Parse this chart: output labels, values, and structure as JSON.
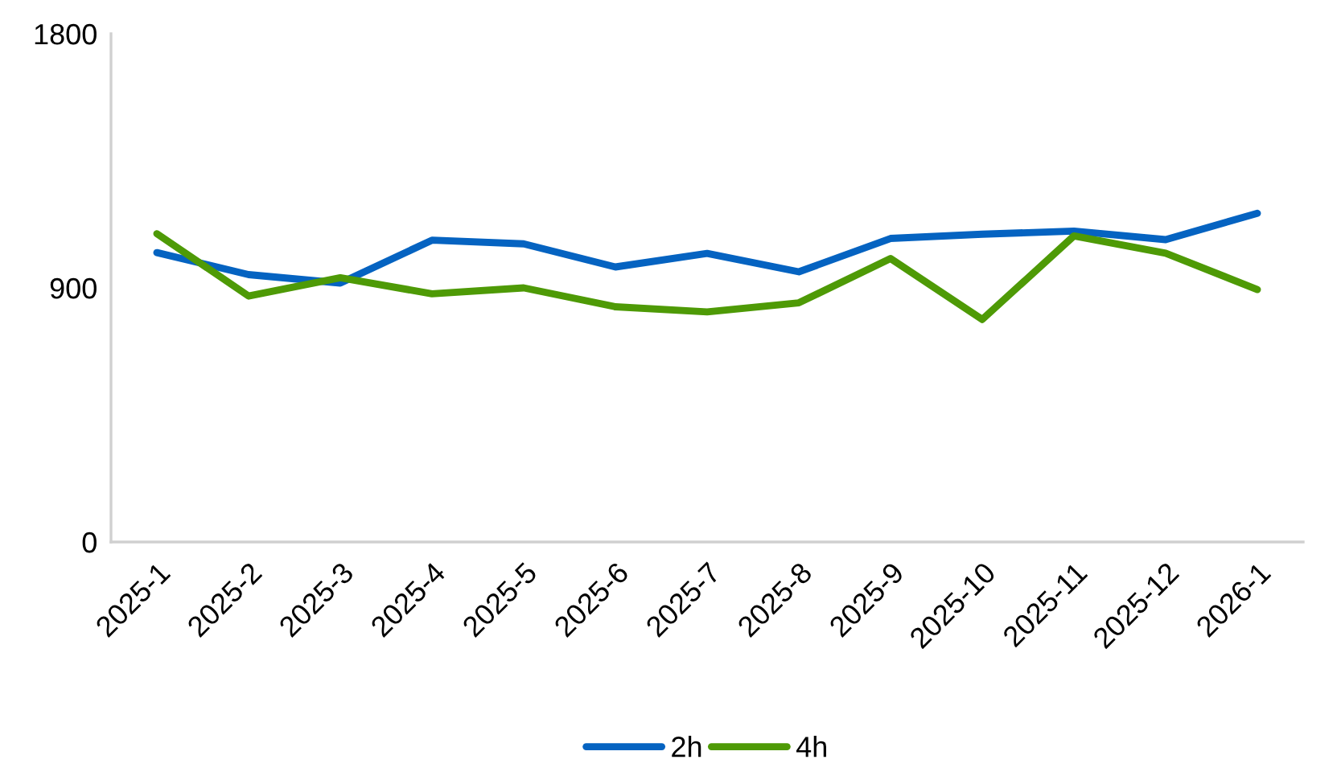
{
  "chart_data": {
    "type": "line",
    "categories": [
      "2025-1",
      "2025-2",
      "2025-3",
      "2025-4",
      "2025-5",
      "2025-6",
      "2025-7",
      "2025-8",
      "2025-9",
      "2025-10",
      "2025-11",
      "2025-12",
      "2026-1"
    ],
    "series": [
      {
        "name": "2h",
        "color": "#0563c1",
        "values": [
          1025,
          947,
          917,
          1069,
          1056,
          974,
          1022,
          957,
          1075,
          1090,
          1101,
          1071,
          1164
        ]
      },
      {
        "name": "4h",
        "color": "#4e9a06",
        "values": [
          1092,
          871,
          936,
          879,
          900,
          833,
          815,
          847,
          1004,
          788,
          1084,
          1023,
          894
        ]
      }
    ],
    "ylim": [
      0,
      1800
    ],
    "yticks": [
      0,
      900,
      1800
    ],
    "grid": false,
    "legend": "bottom",
    "marker": "none",
    "line_style": "solid"
  }
}
